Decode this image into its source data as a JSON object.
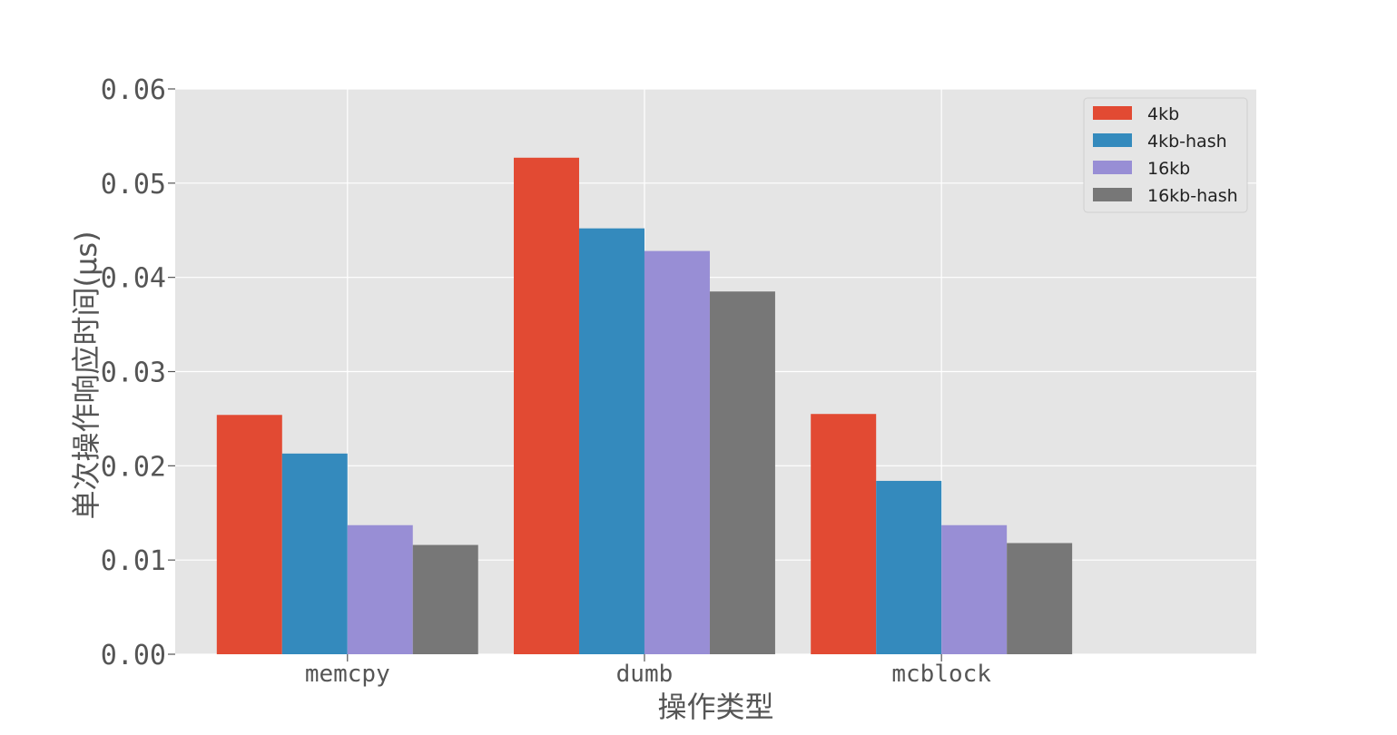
{
  "chart_data": {
    "type": "bar",
    "title": "",
    "xlabel": "操作类型",
    "ylabel": "单次操作响应时间(μs)",
    "categories": [
      "memcpy",
      "dumb",
      "mcblock"
    ],
    "series": [
      {
        "name": "4kb",
        "color": "#E24A33",
        "values": [
          0.0254,
          0.0527,
          0.0255
        ]
      },
      {
        "name": "4kb-hash",
        "color": "#348ABD",
        "values": [
          0.0213,
          0.0452,
          0.0184
        ]
      },
      {
        "name": "16kb",
        "color": "#988ED5",
        "values": [
          0.0137,
          0.0428,
          0.0137
        ]
      },
      {
        "name": "16kb-hash",
        "color": "#777777",
        "values": [
          0.0116,
          0.0385,
          0.0118
        ]
      }
    ],
    "ylim": [
      0,
      0.06
    ],
    "yticks": [
      "0.00",
      "0.01",
      "0.02",
      "0.03",
      "0.04",
      "0.05",
      "0.06"
    ],
    "grid": true,
    "legend_position": "top-right",
    "background_color": "#E5E5E5",
    "grid_color": "#FFFFFF"
  }
}
